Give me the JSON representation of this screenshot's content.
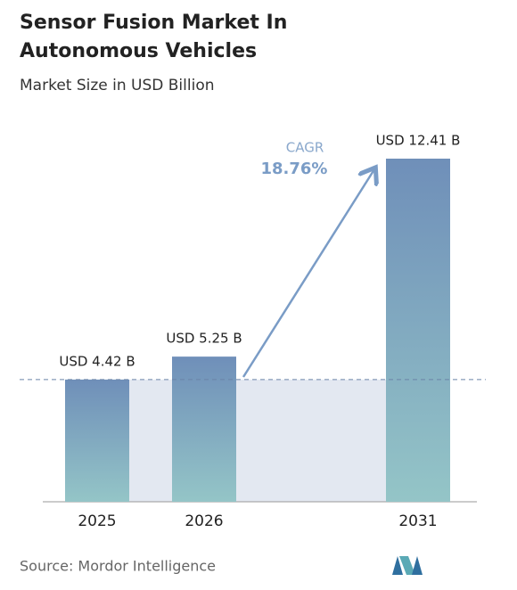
{
  "chart_data": {
    "type": "bar",
    "title": "Sensor Fusion Market In Autonomous Vehicles",
    "subtitle": "Market Size in USD Billion",
    "categories": [
      "2025",
      "2026",
      "2031"
    ],
    "values": [
      4.42,
      5.25,
      12.41
    ],
    "value_labels": [
      "USD 4.42 B",
      "USD 5.25 B",
      "USD 12.41 B"
    ],
    "ylim": [
      0,
      12.41
    ],
    "annotation": {
      "label": "CAGR",
      "value": "18.76%"
    },
    "source": "Source: Mordor Intelligence"
  }
}
